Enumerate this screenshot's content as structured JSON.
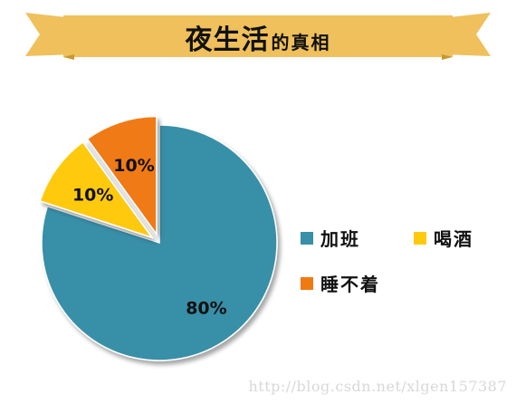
{
  "header": {
    "title_main": "夜生活",
    "title_sub": "的真相",
    "banner_color": "#EFC05B"
  },
  "chart_data": {
    "type": "pie",
    "title": "夜生活的真相",
    "slices": [
      {
        "label": "加班",
        "value": 80,
        "display": "80%",
        "color": "#388FA8",
        "exploded": false
      },
      {
        "label": "喝酒",
        "value": 10,
        "display": "10%",
        "color": "#FFC90E",
        "exploded": true
      },
      {
        "label": "睡不着",
        "value": 10,
        "display": "10%",
        "color": "#F07A12",
        "exploded": true
      }
    ],
    "legend_position": "right"
  },
  "legend": {
    "items": [
      {
        "label": "加班",
        "color": "#388FA8"
      },
      {
        "label": "喝酒",
        "color": "#FFC90E"
      },
      {
        "label": "睡不着",
        "color": "#F07A12"
      }
    ]
  },
  "watermark": {
    "text": "http://blog.csdn.net/xlgen157387"
  }
}
